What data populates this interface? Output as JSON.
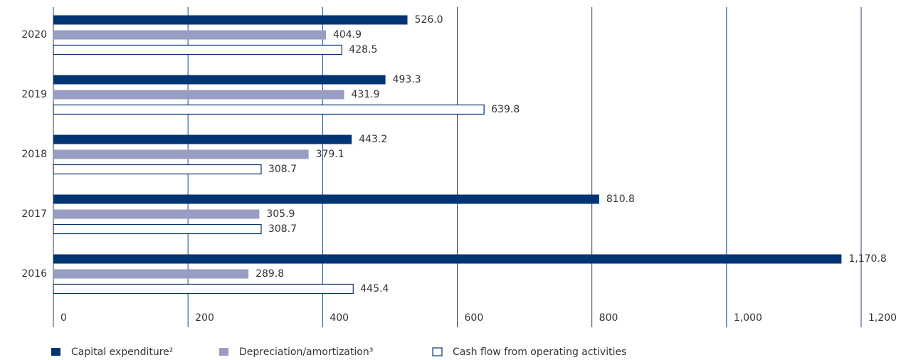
{
  "chart_data": {
    "type": "barh",
    "categories": [
      "2020",
      "2019",
      "2018",
      "2017",
      "2016"
    ],
    "series": [
      {
        "name": "Capital expenditure²",
        "color": "#003472",
        "values": [
          526.0,
          493.3,
          443.2,
          810.8,
          1170.8
        ],
        "value_labels": [
          "526.0",
          "493.3",
          "443.2",
          "810.8",
          "1,170.8"
        ]
      },
      {
        "name": "Depreciation/amortization³",
        "color": "#979dc3",
        "values": [
          404.9,
          431.9,
          379.1,
          305.9,
          289.8
        ],
        "value_labels": [
          "404.9",
          "431.9",
          "379.1",
          "305.9",
          "289.8"
        ]
      },
      {
        "name": "Cash flow from operating activities",
        "color": "#ffffff",
        "edgecolor": "#003472",
        "values": [
          428.5,
          639.8,
          308.7,
          308.7,
          445.4
        ],
        "value_labels": [
          "428.5",
          "639.8",
          "308.7",
          "308.7",
          "445.4"
        ]
      }
    ],
    "xlim": [
      0,
      1200
    ],
    "xticks": [
      0,
      200,
      400,
      600,
      800,
      {
        "value": 1000,
        "label": "1,000"
      },
      {
        "value": 1200,
        "label": "1,200"
      }
    ],
    "grid": true,
    "legend": "bottom"
  }
}
